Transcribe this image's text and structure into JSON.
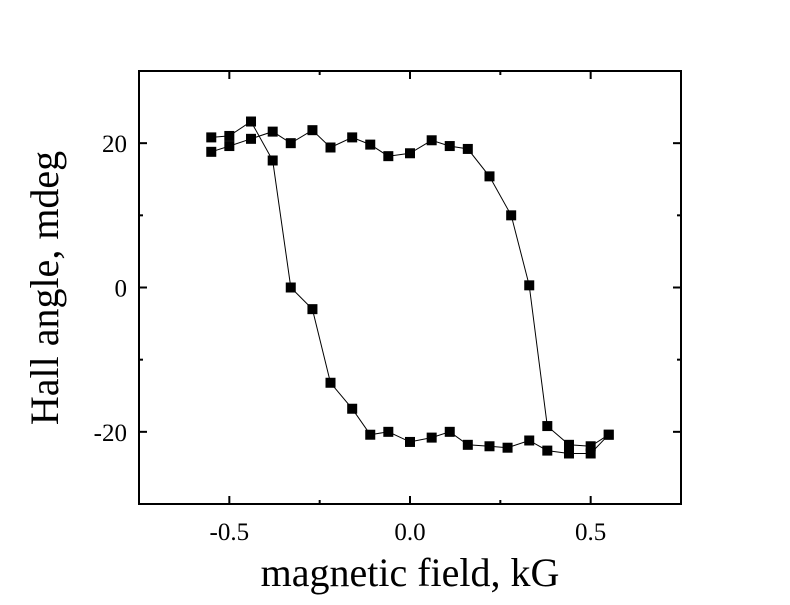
{
  "chart_data": {
    "type": "line",
    "title": "",
    "xlabel": "magnetic field, kG",
    "ylabel": "Hall angle, mdeg",
    "xlim": [
      -0.75,
      0.75
    ],
    "ylim": [
      -30,
      30
    ],
    "xticks": [
      -0.5,
      0.0,
      0.5
    ],
    "xtick_labels": [
      "-0.5",
      "0.0",
      "0.5"
    ],
    "yticks": [
      -20,
      0,
      20
    ],
    "ytick_labels": [
      "-20",
      "0",
      "20"
    ],
    "grid": false,
    "legend": "none",
    "series": [
      {
        "color": "#000000",
        "marker": "square",
        "x": [
          -0.55,
          -0.5,
          -0.44,
          -0.38,
          -0.33,
          -0.27,
          -0.22,
          -0.16,
          -0.11,
          -0.06,
          0.0,
          0.06,
          0.11,
          0.16,
          0.22,
          0.28,
          0.33,
          0.38,
          0.44,
          0.5,
          0.55
        ],
        "y": [
          18.8,
          19.6,
          20.6,
          21.6,
          20.0,
          21.8,
          19.4,
          20.8,
          19.8,
          18.2,
          18.6,
          20.4,
          19.6,
          19.2,
          15.4,
          10.0,
          0.3,
          -19.2,
          -21.8,
          -22.0,
          -20.4
        ]
      },
      {
        "color": "#000000",
        "marker": "square",
        "x": [
          0.55,
          0.5,
          0.44,
          0.38,
          0.33,
          0.27,
          0.22,
          0.16,
          0.11,
          0.06,
          0.0,
          -0.06,
          -0.11,
          -0.16,
          -0.22,
          -0.27,
          -0.33,
          -0.38,
          -0.44,
          -0.5,
          -0.55
        ],
        "y": [
          -20.4,
          -23.0,
          -23.0,
          -22.6,
          -21.2,
          -22.2,
          -22.0,
          -21.8,
          -20.0,
          -20.8,
          -21.4,
          -20.0,
          -20.4,
          -16.8,
          -13.2,
          -3.0,
          0.0,
          17.6,
          23.0,
          21.0,
          20.8
        ]
      }
    ]
  }
}
